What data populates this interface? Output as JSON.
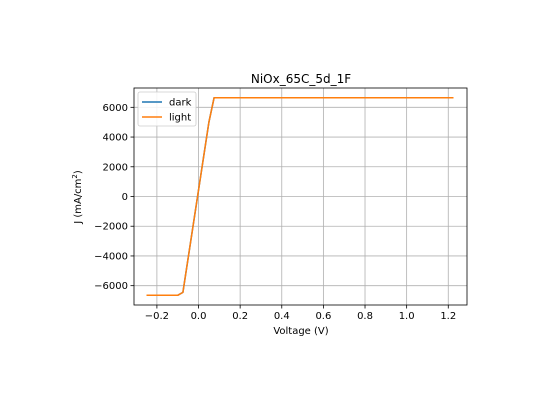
{
  "chart_data": {
    "type": "line",
    "title": "NiOx_65C_5d_1F",
    "xlabel": "Voltage (V)",
    "ylabel_main": "J (mA/cm",
    "ylabel_sup": "2",
    "ylabel_tail": ")",
    "xlim": [
      -0.31,
      1.29
    ],
    "ylim": [
      -7300,
      7300
    ],
    "xticks": [
      -0.2,
      0.0,
      0.2,
      0.4,
      0.6,
      0.8,
      1.0,
      1.2
    ],
    "xtick_labels": [
      "−0.2",
      "0.0",
      "0.2",
      "0.4",
      "0.6",
      "0.8",
      "1.0",
      "1.2"
    ],
    "yticks": [
      -6000,
      -4000,
      -2000,
      0,
      2000,
      4000,
      6000
    ],
    "ytick_labels": [
      "−6000",
      "−4000",
      "−2000",
      "0",
      "2000",
      "4000",
      "6000"
    ],
    "grid": true,
    "legend_position": "top-left",
    "series": [
      {
        "name": "dark",
        "color": "#1f77b4",
        "x": [
          -0.25,
          -0.1,
          -0.075,
          0.05,
          0.075,
          1.225
        ],
        "y": [
          -6650,
          -6650,
          -6450,
          5000,
          6650,
          6650
        ]
      },
      {
        "name": "light",
        "color": "#ff7f0e",
        "x": [
          -0.25,
          -0.1,
          -0.075,
          0.05,
          0.075,
          1.225
        ],
        "y": [
          -6650,
          -6650,
          -6450,
          5000,
          6650,
          6650
        ]
      }
    ]
  }
}
